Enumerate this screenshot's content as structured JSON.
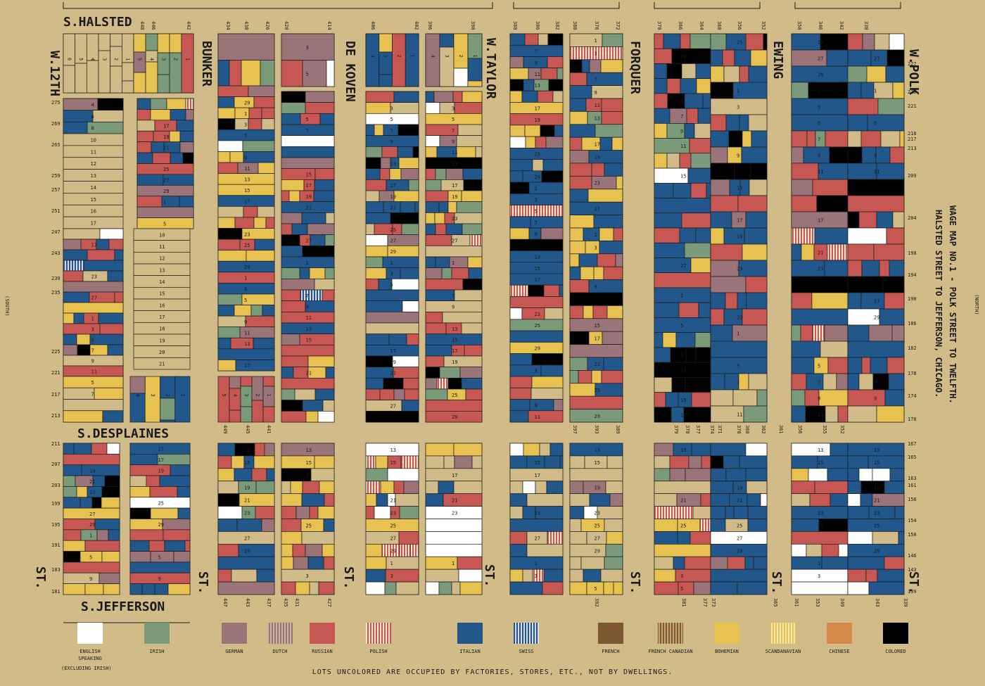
{
  "title_line1": "WAGE MAP NO.1 - POLK STREET TO TWELFTH.",
  "title_line2": "HALSTED STREET TO JEFFERSON, CHICAGO.",
  "compass": {
    "south": "(SOUTH)",
    "north": "(NORTH)"
  },
  "streets": {
    "s_halsted": "S.HALSTED",
    "s_desplaines": "S.DESPLAINES",
    "s_jefferson": "S.JEFFERSON",
    "w_12th": "W.12TH",
    "bunker": "BUNKER",
    "de_koven": "DE KOVEN",
    "w_taylor": "W.TAYLOR",
    "forquer": "FORQUER",
    "ewing": "EWING",
    "w_polk": "W.POLK",
    "st": "ST."
  },
  "footer_note": "LOTS UNCOLORED ARE OCCUPIED BY FACTORIES, STORES, ETC., NOT BY DWELLINGS.",
  "legend_sub": "(EXCLUDING IRISH)",
  "legend": [
    {
      "label": "ENGLISH SPEAKING",
      "color": "#ffffff",
      "striped": false
    },
    {
      "label": "IRISH",
      "color": "#7a9a7a",
      "striped": false
    },
    {
      "label": "GERMAN",
      "color": "#9a7478",
      "striped": false
    },
    {
      "label": "DUTCH",
      "color": "#9a7478",
      "striped": true
    },
    {
      "label": "RUSSIAN",
      "color": "#c65752",
      "striped": false
    },
    {
      "label": "POLISH",
      "color": "#c65752",
      "striped": true
    },
    {
      "label": "ITALIAN",
      "color": "#22578c",
      "striped": false
    },
    {
      "label": "SWISS",
      "color": "#22578c",
      "striped": true
    },
    {
      "label": "FRENCH",
      "color": "#7d5732",
      "striped": false
    },
    {
      "label": "FRENCH CANADIAN",
      "color": "#7d5732",
      "striped": true
    },
    {
      "label": "BOHEMIAN",
      "color": "#e8c250",
      "striped": false
    },
    {
      "label": "SCANDANAVIAN",
      "color": "#e8c250",
      "striped": true
    },
    {
      "label": "CHINESE",
      "color": "#d48a4a",
      "striped": false
    },
    {
      "label": "COLORED",
      "color": "#000000",
      "striped": false
    }
  ],
  "palette": {
    "english": "#ffffff",
    "irish": "#7a9a7a",
    "german": "#9a7478",
    "russian": "#c65752",
    "italian": "#22578c",
    "bohemian": "#e8c250",
    "colored": "#000000",
    "uncolored": "#d1bc89",
    "paper": "#d1bc89"
  },
  "house_numbers_top": [
    "448",
    "446",
    "442",
    "434",
    "430",
    "426",
    "420",
    "414",
    "406",
    "402",
    "396",
    "390",
    "388",
    "386",
    "382",
    "380",
    "376",
    "372",
    "370",
    "366",
    "364",
    "360",
    "356",
    "352",
    "350",
    "346",
    "342",
    "338"
  ],
  "house_numbers_bottom": [
    "447",
    "443",
    "437",
    "435",
    "431",
    "427",
    "397",
    "393",
    "389",
    "392",
    "381",
    "377",
    "373",
    "365",
    "361",
    "353",
    "349",
    "343",
    "339",
    "449",
    "445",
    "441",
    "379",
    "378",
    "377",
    "374",
    "371",
    "370",
    "368",
    "362",
    "361",
    "356",
    "355",
    "352"
  ],
  "street_numbers_left": [
    "275",
    "269",
    "265",
    "259",
    "257",
    "251",
    "247",
    "243",
    "239",
    "235",
    "225",
    "221",
    "217",
    "213",
    "211",
    "207",
    "203",
    "199",
    "195",
    "191",
    "183",
    "181"
  ],
  "street_numbers_right": [
    "227",
    "225",
    "221",
    "218",
    "217",
    "213",
    "209",
    "204",
    "198",
    "194",
    "190",
    "186",
    "182",
    "178",
    "174",
    "170",
    "167",
    "165",
    "163",
    "161",
    "156",
    "154",
    "150",
    "146",
    "143",
    "139"
  ]
}
